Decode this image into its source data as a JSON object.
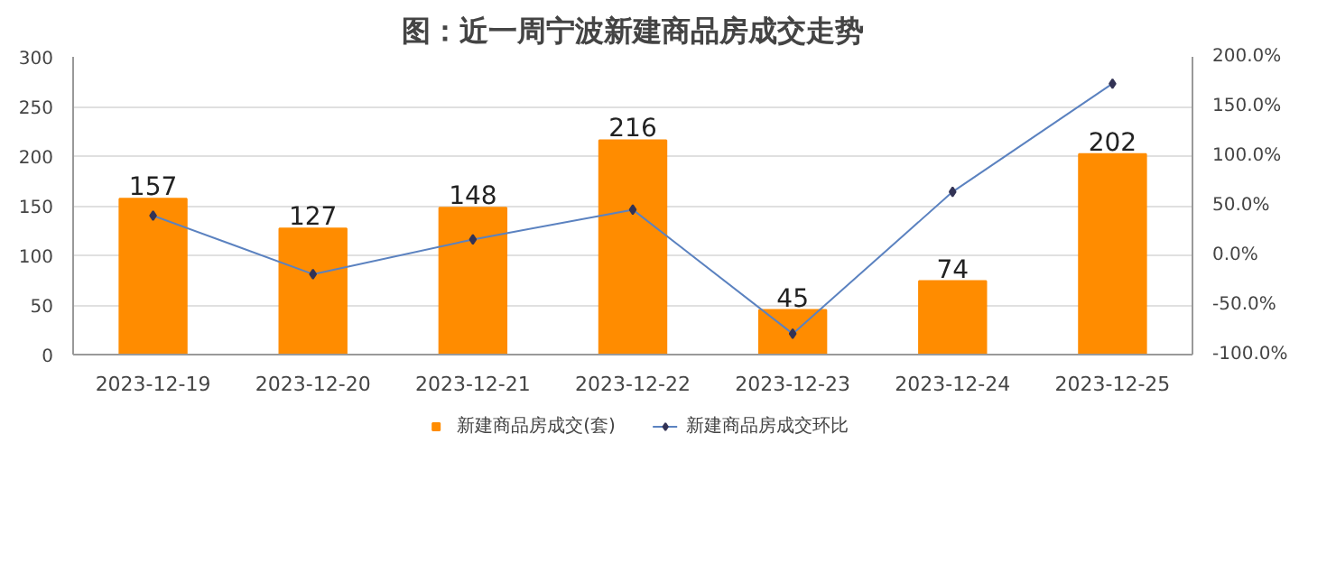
{
  "chart_data": {
    "type": "bar",
    "title": "图：近一周宁波新建商品房成交走势",
    "categories": [
      "2023-12-19",
      "2023-12-20",
      "2023-12-21",
      "2023-12-22",
      "2023-12-23",
      "2023-12-24",
      "2023-12-25"
    ],
    "series": [
      {
        "name": "新建商品房成交(套)",
        "color": "#ff8c00",
        "values": [
          157,
          127,
          148,
          216,
          45,
          74,
          202
        ],
        "value_labels": [
          "157",
          "127",
          "148",
          "216",
          "45",
          "74",
          "202"
        ]
      },
      {
        "name": "新建商品房成交环比",
        "type": "line",
        "axis": "y2",
        "color": "#5b82c0",
        "marker": "diamond",
        "values": [
          40,
          -19,
          16,
          46,
          -79,
          64,
          173
        ]
      }
    ],
    "ylim": [
      0,
      300
    ],
    "yticks": [
      0,
      50,
      100,
      150,
      200,
      250,
      300
    ],
    "y2lim": [
      -100,
      200
    ],
    "y2ticks": [
      {
        "value": -100,
        "label": "-100.0%"
      },
      {
        "value": -50,
        "label": "-50.0%"
      },
      {
        "value": 0,
        "label": "0.0%"
      },
      {
        "value": 50,
        "label": "50.0%"
      },
      {
        "value": 100,
        "label": "100.0%"
      },
      {
        "value": 150,
        "label": "150.0%"
      },
      {
        "value": 200,
        "label": "200.0%"
      }
    ],
    "grid": "y",
    "legend": "bottom"
  }
}
